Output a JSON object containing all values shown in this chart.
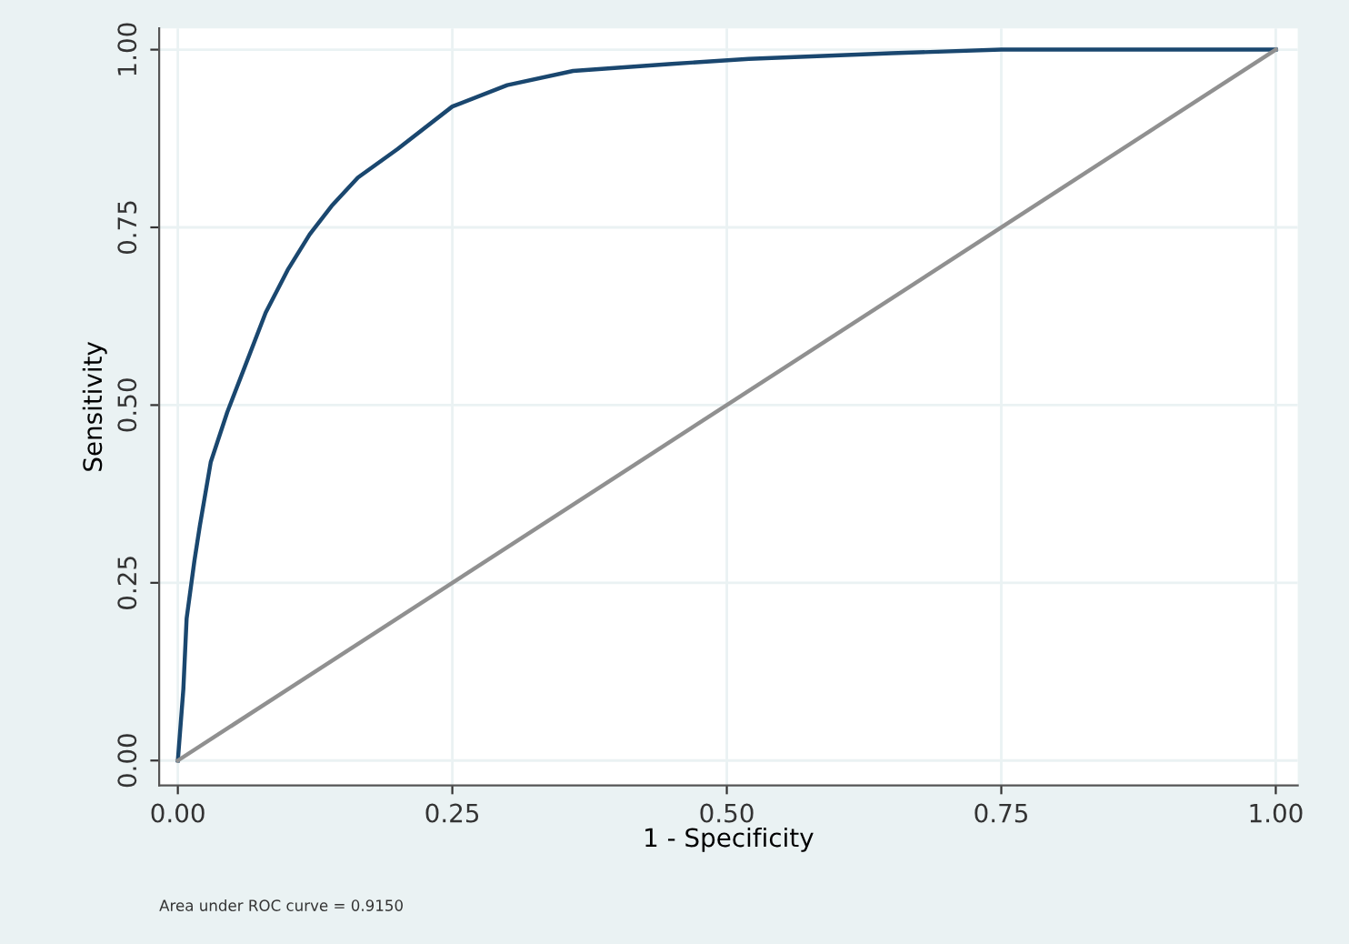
{
  "chart_data": {
    "type": "line",
    "xlabel": "1 - Specificity",
    "ylabel": "Sensitivity",
    "annotations": [
      "Area under ROC curve = 0.9150"
    ],
    "series": [
      {
        "color": "#1a476f",
        "x": [
          0,
          0.005,
          0.008,
          0.015,
          0.02,
          0.03,
          0.045,
          0.06,
          0.08,
          0.1,
          0.12,
          0.14,
          0.164,
          0.2,
          0.25,
          0.3,
          0.36,
          0.45,
          0.52,
          0.65,
          0.75,
          1
        ],
        "values": [
          0,
          0.1,
          0.2,
          0.28,
          0.33,
          0.42,
          0.49,
          0.55,
          0.63,
          0.69,
          0.74,
          0.78,
          0.82,
          0.86,
          0.92,
          0.95,
          0.97,
          0.98,
          0.987,
          0.995,
          1,
          1
        ]
      },
      {
        "color": "#909090",
        "x": [
          0,
          1
        ],
        "values": [
          0,
          1
        ]
      }
    ],
    "xlim": [
      -0.017,
      1.02
    ],
    "ylim": [
      -0.035,
      1.03
    ],
    "xticks": [
      {
        "value": 0,
        "label": "0.00"
      },
      {
        "value": 0.25,
        "label": "0.25"
      },
      {
        "value": 0.5,
        "label": "0.50"
      },
      {
        "value": 0.75,
        "label": "0.75"
      },
      {
        "value": 1,
        "label": "1.00"
      }
    ],
    "yticks": [
      {
        "value": 0,
        "label": "0.00"
      },
      {
        "value": 0.25,
        "label": "0.25"
      },
      {
        "value": 0.5,
        "label": "0.50"
      },
      {
        "value": 0.75,
        "label": "0.75"
      },
      {
        "value": 1,
        "label": "1.00"
      }
    ],
    "grid": true,
    "marker": "none",
    "line_style": "solid"
  }
}
